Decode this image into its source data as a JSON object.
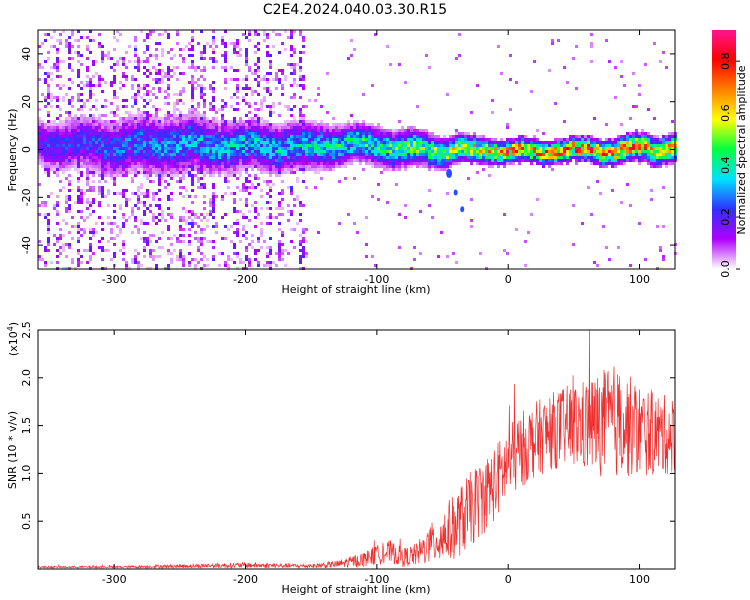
{
  "title": "C2E4.2024.040.03.30.R15",
  "chart_data": [
    {
      "type": "heatmap",
      "xlabel": "Height of straight line (km)",
      "ylabel": "Frequency (Hz)",
      "xlim": [
        -358,
        127
      ],
      "ylim": [
        -50,
        50
      ],
      "x_ticks": [
        -300,
        -200,
        -100,
        0,
        100
      ],
      "y_ticks": [
        -40,
        -20,
        0,
        20,
        40
      ],
      "colorbar": {
        "label": "Normalized spectral amplitude",
        "range": [
          0,
          0.92
        ],
        "ticks": [
          "0.0",
          "0.2",
          "0.4",
          "0.6",
          "0.8"
        ],
        "colors": [
          "#ffffff",
          "#b000ff",
          "#3030ff",
          "#00e0ff",
          "#00ff40",
          "#ffff00",
          "#ff8000",
          "#ff0000",
          "#ff1493"
        ]
      },
      "band_profile": [
        {
          "x": -350,
          "center": 3,
          "halfwidth": 5,
          "amp": 0.25
        },
        {
          "x": -300,
          "center": 2,
          "halfwidth": 6,
          "amp": 0.28
        },
        {
          "x": -250,
          "center": 3,
          "halfwidth": 6,
          "amp": 0.35
        },
        {
          "x": -200,
          "center": 2,
          "halfwidth": 5,
          "amp": 0.38
        },
        {
          "x": -150,
          "center": 2,
          "halfwidth": 5,
          "amp": 0.4
        },
        {
          "x": -120,
          "center": 3,
          "halfwidth": 4,
          "amp": 0.45
        },
        {
          "x": -80,
          "center": 1,
          "halfwidth": 4,
          "amp": 0.52
        },
        {
          "x": -40,
          "center": 0,
          "halfwidth": 3,
          "amp": 0.6
        },
        {
          "x": 0,
          "center": 0,
          "halfwidth": 2.5,
          "amp": 0.8
        },
        {
          "x": 50,
          "center": 0,
          "halfwidth": 2.5,
          "amp": 0.82
        },
        {
          "x": 100,
          "center": 1,
          "halfwidth": 3,
          "amp": 0.78
        },
        {
          "x": 125,
          "center": 1,
          "halfwidth": 3,
          "amp": 0.7
        }
      ],
      "noise_region_x": [
        -358,
        -150
      ]
    },
    {
      "type": "line",
      "xlabel": "Height of straight line (km)",
      "ylabel": "SNR (10 * v/v)",
      "y_multiplier_label": "(x10",
      "y_multiplier_exp": "4",
      "y_multiplier_close": ")",
      "xlim": [
        -358,
        127
      ],
      "ylim": [
        0,
        2.5
      ],
      "x_ticks": [
        -300,
        -200,
        -100,
        0,
        100
      ],
      "y_ticks": [
        0.5,
        1.0,
        1.5,
        2.0,
        2.5
      ],
      "series": [
        {
          "color": "#f03030",
          "x": [
            -358,
            -300,
            -250,
            -200,
            -150,
            -130,
            -110,
            -100,
            -90,
            -80,
            -70,
            -60,
            -50,
            -40,
            -30,
            -20,
            -10,
            0,
            10,
            20,
            30,
            40,
            50,
            60,
            70,
            80,
            90,
            100,
            110,
            120,
            127
          ],
          "mean": [
            0.02,
            0.02,
            0.03,
            0.04,
            0.03,
            0.05,
            0.1,
            0.15,
            0.18,
            0.12,
            0.15,
            0.25,
            0.35,
            0.45,
            0.6,
            0.75,
            0.9,
            1.1,
            1.25,
            1.35,
            1.42,
            1.48,
            1.5,
            1.5,
            1.52,
            1.55,
            1.5,
            1.45,
            1.42,
            1.4,
            1.4
          ],
          "spread": [
            0.01,
            0.01,
            0.02,
            0.03,
            0.02,
            0.04,
            0.08,
            0.1,
            0.12,
            0.1,
            0.12,
            0.2,
            0.3,
            0.35,
            0.4,
            0.4,
            0.4,
            0.4,
            0.4,
            0.4,
            0.4,
            0.42,
            0.45,
            0.5,
            0.55,
            0.6,
            0.55,
            0.5,
            0.45,
            0.42,
            0.4
          ]
        }
      ]
    }
  ]
}
